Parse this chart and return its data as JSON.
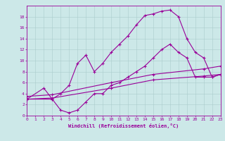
{
  "title": "",
  "xlabel": "Windchill (Refroidissement éolien,°C)",
  "background_color": "#cce8e8",
  "line_color": "#990099",
  "xlim": [
    0,
    23
  ],
  "ylim": [
    0,
    20
  ],
  "xticks": [
    0,
    1,
    2,
    3,
    4,
    5,
    6,
    7,
    8,
    9,
    10,
    11,
    12,
    13,
    14,
    15,
    16,
    17,
    18,
    19,
    20,
    21,
    22,
    23
  ],
  "yticks": [
    0,
    2,
    4,
    6,
    8,
    10,
    12,
    14,
    16,
    18
  ],
  "grid_color": "#aacccc",
  "curve1_x": [
    0,
    2,
    3,
    4,
    5,
    6,
    7,
    8,
    9,
    10,
    11,
    12,
    13,
    14,
    15,
    16,
    17,
    18,
    19,
    20,
    21,
    22,
    23
  ],
  "curve1_y": [
    3,
    5,
    3,
    4,
    5.5,
    9.5,
    11,
    8,
    9.5,
    11.5,
    13,
    14.5,
    16.5,
    18.2,
    18.5,
    19.0,
    19.2,
    18.0,
    14.0,
    11.5,
    10.5,
    7.0,
    7.5
  ],
  "curve2_x": [
    0,
    3,
    4,
    5,
    6,
    7,
    8,
    9,
    10,
    11,
    12,
    13,
    14,
    15,
    16,
    17,
    18,
    19,
    20,
    21,
    22,
    23
  ],
  "curve2_y": [
    3,
    3,
    1,
    0.5,
    1,
    2.5,
    4,
    4,
    5.5,
    6,
    7,
    8,
    9,
    10.5,
    12,
    13,
    11.5,
    10.5,
    7,
    7,
    7,
    7.5
  ],
  "curve3_x": [
    0,
    3,
    10,
    15,
    21,
    23
  ],
  "curve3_y": [
    3.5,
    3.8,
    6.0,
    7.5,
    8.5,
    9.0
  ],
  "curve4_x": [
    0,
    3,
    10,
    15,
    21,
    23
  ],
  "curve4_y": [
    3.0,
    3.2,
    5.0,
    6.5,
    7.2,
    7.5
  ]
}
